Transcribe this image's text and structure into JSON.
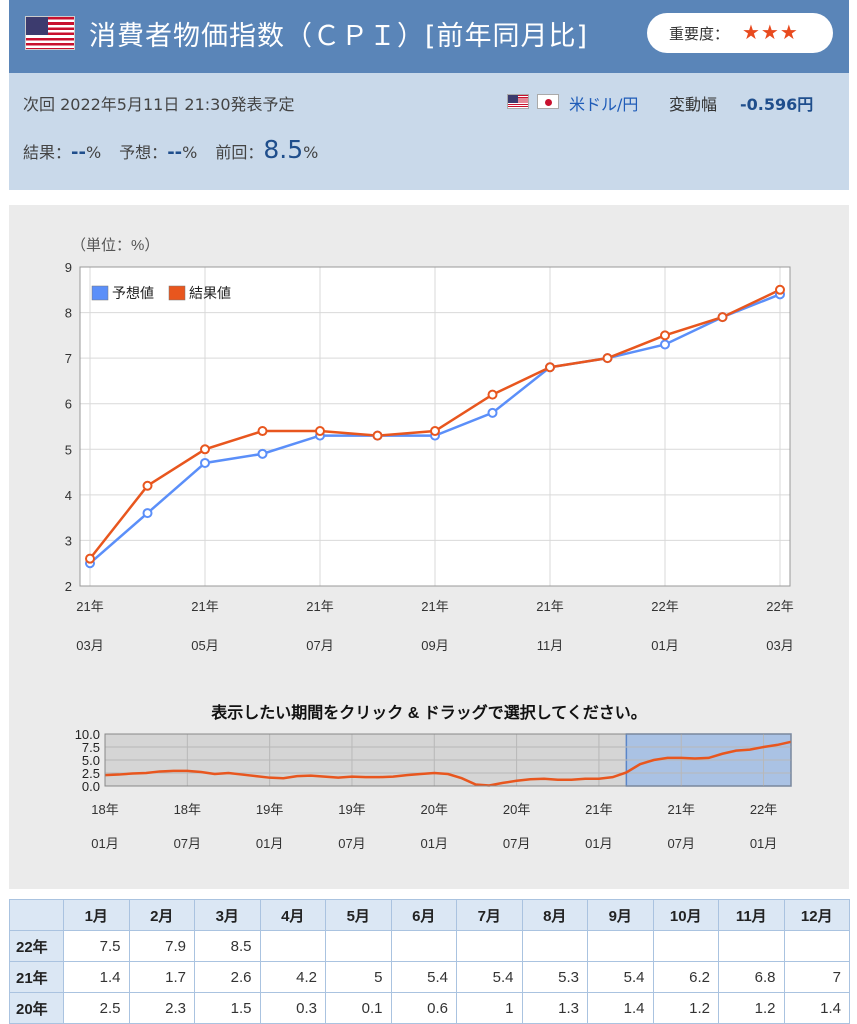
{
  "header": {
    "title": "消費者物価指数（ＣＰＩ）[前年同月比]",
    "importance_label": "重要度：",
    "importance_stars": "★★★",
    "importance_level": 3
  },
  "info": {
    "next_release": "次回 2022年5月11日 21:30発表予定",
    "pair": "米ドル/円",
    "volatility_label": "変動幅",
    "volatility_value": "-0.596円",
    "result_label": "結果：",
    "result_value": "--",
    "forecast_label": "予想：",
    "forecast_value": "--",
    "previous_label": "前回：",
    "previous_value": "8.5",
    "unit": "%"
  },
  "colors": {
    "header_bg": "#5a85b8",
    "info_bg": "#c9d9ea",
    "forecast_series": "#5b8ff9",
    "result_series": "#e8561e",
    "selection": "#a5c0e6"
  },
  "chart_data": [
    {
      "type": "line",
      "unit_label": "（単位：%）",
      "ylim": [
        2,
        9
      ],
      "yticks": [
        2,
        3,
        4,
        5,
        6,
        7,
        8,
        9
      ],
      "x": [
        "21年03月",
        "21年04月",
        "21年05月",
        "21年06月",
        "21年07月",
        "21年08月",
        "21年09月",
        "21年10月",
        "21年11月",
        "21年12月",
        "22年01月",
        "22年02月",
        "22年03月"
      ],
      "xtick_labels": [
        {
          "index": 0,
          "year": "21年",
          "month": "03月"
        },
        {
          "index": 2,
          "year": "21年",
          "month": "05月"
        },
        {
          "index": 4,
          "year": "21年",
          "month": "07月"
        },
        {
          "index": 6,
          "year": "21年",
          "month": "09月"
        },
        {
          "index": 8,
          "year": "21年",
          "month": "11月"
        },
        {
          "index": 10,
          "year": "22年",
          "month": "01月"
        },
        {
          "index": 12,
          "year": "22年",
          "month": "03月"
        }
      ],
      "series": [
        {
          "name": "予想値",
          "color": "#5b8ff9",
          "values": [
            2.5,
            3.6,
            4.7,
            4.9,
            5.3,
            5.3,
            5.3,
            5.8,
            6.8,
            7.0,
            7.3,
            7.9,
            8.4
          ]
        },
        {
          "name": "結果値",
          "color": "#e8561e",
          "values": [
            2.6,
            4.2,
            5.0,
            5.4,
            5.4,
            5.3,
            5.4,
            6.2,
            6.8,
            7.0,
            7.5,
            7.9,
            8.5
          ]
        }
      ],
      "grid": true,
      "legend": "top-left"
    },
    {
      "type": "line",
      "title": "表示したい期間をクリック & ドラッグで選択してください。",
      "ylim": [
        0,
        10
      ],
      "yticks": [
        "0.0",
        "2.5",
        "5.0",
        "7.5",
        "10.0"
      ],
      "x_start": "18年01月",
      "x_end": "22年03月",
      "values": [
        2.1,
        2.2,
        2.4,
        2.5,
        2.8,
        2.9,
        2.9,
        2.7,
        2.3,
        2.5,
        2.2,
        1.9,
        1.6,
        1.5,
        1.9,
        2.0,
        1.8,
        1.6,
        1.8,
        1.7,
        1.7,
        1.8,
        2.1,
        2.3,
        2.5,
        2.3,
        1.5,
        0.3,
        0.1,
        0.6,
        1.0,
        1.3,
        1.4,
        1.2,
        1.2,
        1.4,
        1.4,
        1.7,
        2.6,
        4.2,
        5.0,
        5.4,
        5.4,
        5.3,
        5.4,
        6.2,
        6.8,
        7.0,
        7.5,
        7.9,
        8.5
      ],
      "xtick_labels": [
        {
          "year": "18年",
          "month": "01月"
        },
        {
          "year": "18年",
          "month": "07月"
        },
        {
          "year": "19年",
          "month": "01月"
        },
        {
          "year": "19年",
          "month": "07月"
        },
        {
          "year": "20年",
          "month": "01月"
        },
        {
          "year": "20年",
          "month": "07月"
        },
        {
          "year": "21年",
          "month": "01月"
        },
        {
          "year": "21年",
          "month": "07月"
        },
        {
          "year": "22年",
          "month": "01月"
        }
      ],
      "selected_range": [
        "21年03月",
        "22年03月"
      ]
    },
    {
      "type": "table",
      "columns": [
        "",
        "1月",
        "2月",
        "3月",
        "4月",
        "5月",
        "6月",
        "7月",
        "8月",
        "9月",
        "10月",
        "11月",
        "12月"
      ],
      "rows": [
        {
          "year": "22年",
          "values": [
            "7.5",
            "7.9",
            "8.5",
            "",
            "",
            "",
            "",
            "",
            "",
            "",
            "",
            ""
          ]
        },
        {
          "year": "21年",
          "values": [
            "1.4",
            "1.7",
            "2.6",
            "4.2",
            "5",
            "5.4",
            "5.4",
            "5.3",
            "5.4",
            "6.2",
            "6.8",
            "7"
          ]
        },
        {
          "year": "20年",
          "values": [
            "2.5",
            "2.3",
            "1.5",
            "0.3",
            "0.1",
            "0.6",
            "1",
            "1.3",
            "1.4",
            "1.2",
            "1.2",
            "1.4"
          ]
        }
      ]
    }
  ]
}
